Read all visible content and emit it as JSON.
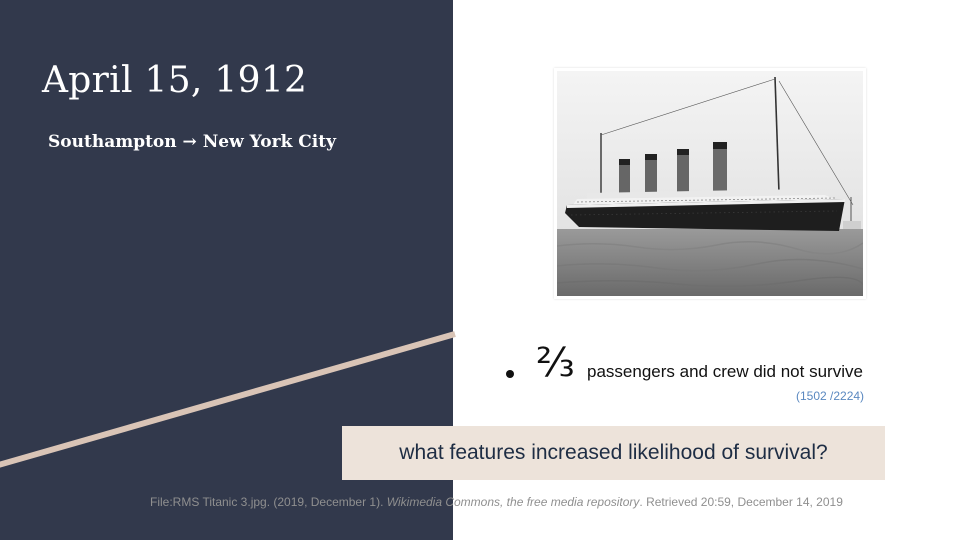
{
  "slide": {
    "title": "April 15, 1912",
    "subtitle": "Southampton → New York City",
    "stat": {
      "fraction": "⅔",
      "text": "passengers and crew did not survive",
      "note": "(1502 /2224)"
    },
    "question": "what features increased likelihood of survival?",
    "citation": {
      "part1": "File:RMS Titanic 3.jpg. (2019, December 1). ",
      "italic": "Wikimedia Commons, the free media repository",
      "part2": ". Retrieved 20:59, December 14, 2019"
    }
  },
  "colors": {
    "panel": "#32394c",
    "accent_line": "#d9c4b6",
    "question_box": "#ede3da",
    "note_link": "#5a88c0"
  }
}
